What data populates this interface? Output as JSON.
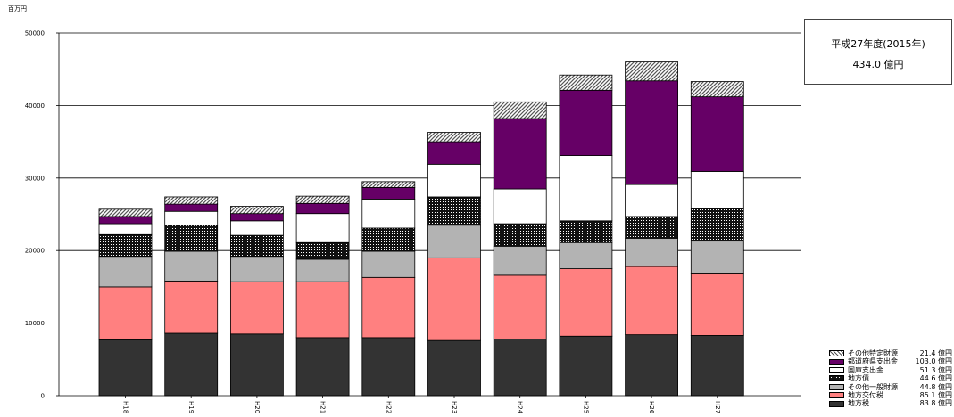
{
  "chart_data": {
    "type": "bar",
    "stacked": true,
    "unit_label": "百万円",
    "categories": [
      "H18",
      "H19",
      "H20",
      "H21",
      "H22",
      "H23",
      "H24",
      "H25",
      "H26",
      "H27"
    ],
    "ylim": [
      0,
      50000
    ],
    "yticks": [
      "0",
      "10000",
      "20000",
      "30000",
      "40000",
      "50000"
    ],
    "grid": true,
    "series": [
      {
        "name": "地方税",
        "legend_value": "83.8 億円",
        "color": "#333333",
        "pattern": "solid",
        "values": [
          7700,
          8600,
          8500,
          8000,
          8000,
          7600,
          7800,
          8200,
          8400,
          8300
        ]
      },
      {
        "name": "地方交付税",
        "legend_value": "85.1 億円",
        "color": "#ff8080",
        "pattern": "solid",
        "values": [
          7300,
          7200,
          7200,
          7700,
          8300,
          11400,
          8800,
          9300,
          9400,
          8600
        ]
      },
      {
        "name": "その他一般財源",
        "legend_value": "44.8 億円",
        "color": "#b3b3b3",
        "pattern": "solid",
        "values": [
          4200,
          4100,
          3500,
          3100,
          3600,
          4500,
          4000,
          3600,
          3900,
          4400
        ]
      },
      {
        "name": "地方債",
        "legend_value": "44.6 億円",
        "color": "#1a1a1a",
        "pattern": "dots",
        "values": [
          3000,
          3600,
          2900,
          2300,
          3200,
          3900,
          3100,
          3000,
          3000,
          4500
        ]
      },
      {
        "name": "国庫支出金",
        "legend_value": "51.3 億円",
        "color": "#ffffff",
        "pattern": "solid",
        "values": [
          1500,
          1900,
          2000,
          4000,
          4000,
          4500,
          4800,
          9000,
          4400,
          5100
        ]
      },
      {
        "name": "都道府県支出金",
        "legend_value": "103.0 億円",
        "color": "#660066",
        "pattern": "solid",
        "values": [
          1000,
          1000,
          1000,
          1400,
          1600,
          3100,
          9700,
          9000,
          14300,
          10300
        ]
      },
      {
        "name": "その他特定財源",
        "legend_value": "21.4 億円",
        "color": "#999999",
        "pattern": "hatch",
        "values": [
          1000,
          1000,
          1000,
          1000,
          800,
          1300,
          2300,
          2100,
          2600,
          2100
        ]
      }
    ]
  },
  "summary": {
    "period": "平成27年度(2015年)",
    "total": "434.0 億円"
  },
  "legend_order": [
    6,
    5,
    4,
    3,
    2,
    1,
    0
  ]
}
